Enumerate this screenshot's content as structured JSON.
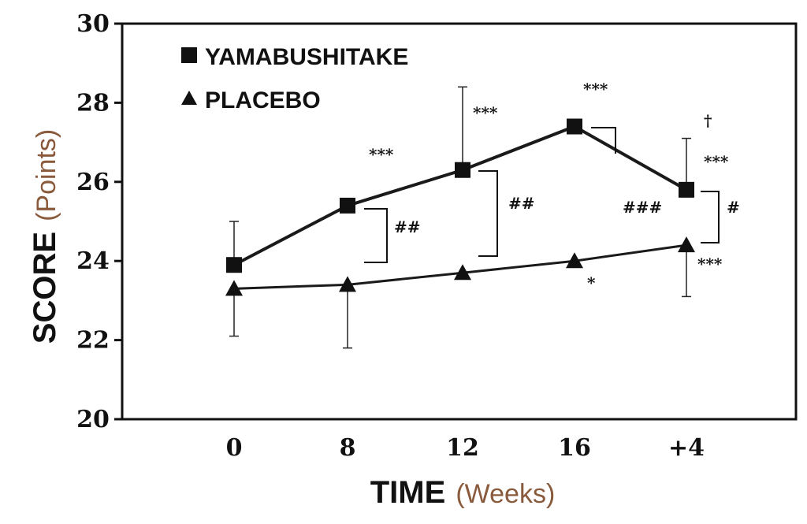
{
  "chart_data": {
    "type": "line",
    "x": [
      "0",
      "8",
      "12",
      "16",
      "+4"
    ],
    "series": [
      {
        "name": "YAMABUSHITAKE",
        "marker": "square",
        "values": [
          23.9,
          25.4,
          26.3,
          27.4,
          25.8
        ],
        "error_bars": [
          1.1,
          null,
          2.1,
          null,
          1.3
        ]
      },
      {
        "name": "PLACEBO",
        "marker": "triangle",
        "values": [
          23.3,
          23.4,
          23.7,
          24.0,
          24.4
        ],
        "error_bars": [
          1.2,
          1.6,
          null,
          null,
          1.3
        ]
      }
    ],
    "ylim": [
      20,
      30
    ],
    "yticks": [
      "20",
      "22",
      "24",
      "26",
      "28",
      "30"
    ],
    "xlabel": {
      "bold": "TIME",
      "light": "(Weeks)"
    },
    "ylabel": {
      "bold": "SCORE",
      "light": "(Points)"
    },
    "legend": {
      "placement": "top-left"
    },
    "annotations": {
      "s8": "***",
      "s12": "***",
      "s16": "***",
      "p4_dagger": "†",
      "p4_top": "***",
      "p4_bottom": "***",
      "placebo16": "*",
      "hash8": "##",
      "hash12": "##",
      "hash16": "###",
      "hash4": "#"
    },
    "colors": {
      "line": "#1a1a1a",
      "axis_light": "#8a5a3c"
    }
  }
}
